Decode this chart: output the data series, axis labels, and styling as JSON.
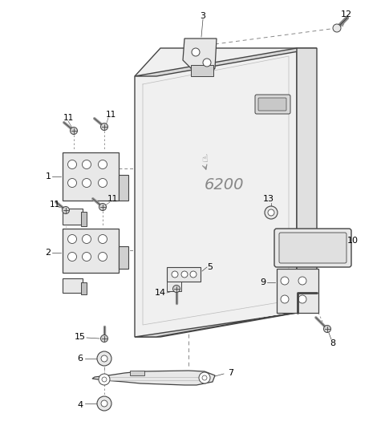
{
  "bg_color": "#ffffff",
  "lc": "#444444",
  "dc": "#888888",
  "fc": "#e8e8e8",
  "fc2": "#d0d0d0",
  "fc3": "#c0c0c0"
}
